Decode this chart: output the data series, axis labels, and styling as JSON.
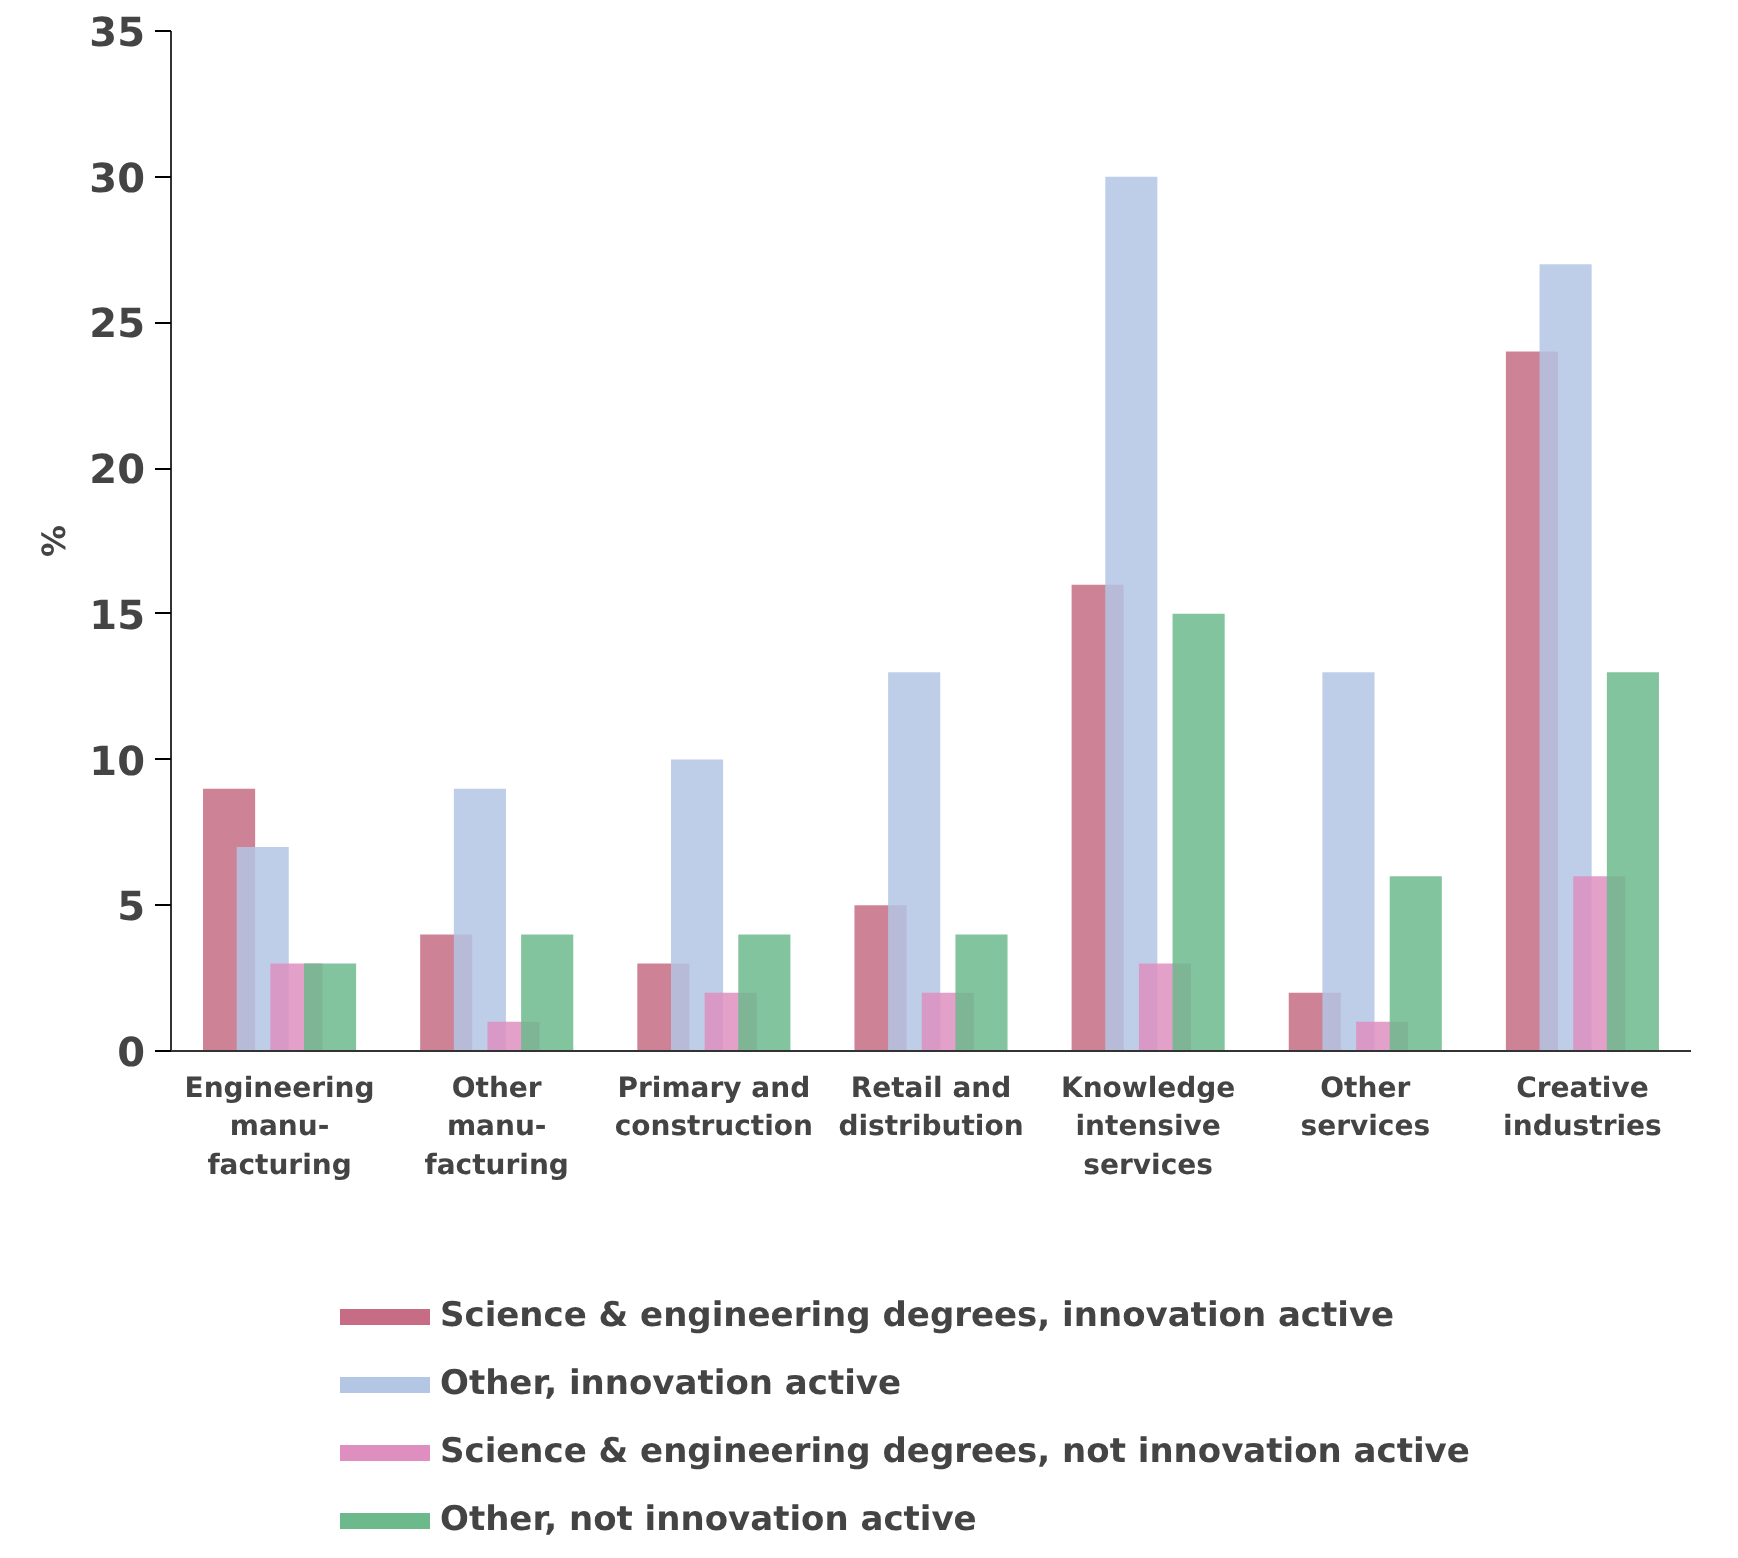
{
  "chart_data": {
    "type": "bar",
    "ylabel": "%",
    "categories": [
      "Engineering\nmanu-\nfacturing",
      "Other\nmanu-\nfacturing",
      "Primary and\nconstruction",
      "Retail and\ndistribution",
      "Knowledge\nintensive\nservices",
      "Other\nservices",
      "Creative\nindustries"
    ],
    "series": [
      {
        "name": "Science & engineering degrees, innovation active",
        "color": "#c66c84",
        "values": [
          9,
          4,
          3,
          5,
          16,
          2,
          24
        ]
      },
      {
        "name": "Other, innovation active",
        "color": "#b3c6e4",
        "values": [
          7,
          9,
          10,
          13,
          30,
          13,
          27
        ]
      },
      {
        "name": "Science & engineering degrees, not innovation active",
        "color": "#de8fc0",
        "values": [
          3,
          1,
          2,
          2,
          3,
          1,
          6
        ]
      },
      {
        "name": "Other, not innovation active",
        "color": "#6cba8c",
        "values": [
          3,
          4,
          4,
          4,
          15,
          6,
          13
        ]
      }
    ],
    "ylim": [
      0,
      35
    ],
    "yticks": [
      0,
      5,
      10,
      15,
      20,
      25,
      30,
      35
    ],
    "grid": false,
    "legend": "bottom"
  }
}
